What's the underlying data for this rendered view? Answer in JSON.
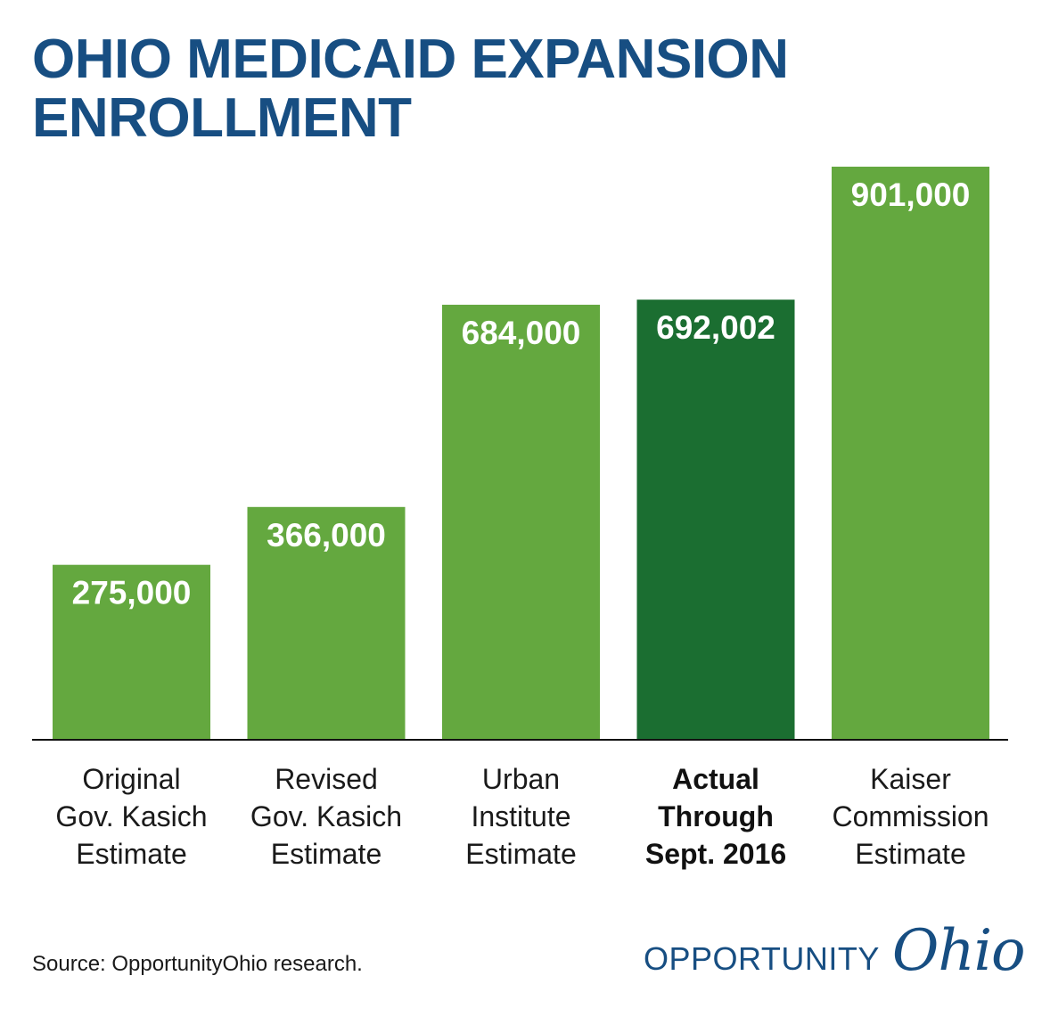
{
  "title_lines": [
    "OHIO MEDICAID EXPANSION",
    "ENROLLMENT"
  ],
  "source": "Source: OpportunityOhio research.",
  "logo": {
    "word1": "OPPORTUNITY",
    "word2": "Ohio",
    "color": "#174e82"
  },
  "colors": {
    "bar": "#64a83f",
    "highlight_bar": "#1b6e31",
    "title": "#174e82",
    "baseline": "#111111"
  },
  "chart_data": {
    "type": "bar",
    "title": "OHIO MEDICAID EXPANSION ENROLLMENT",
    "categories": [
      "Original Gov. Kasich Estimate",
      "Revised Gov. Kasich Estimate",
      "Urban Institute Estimate",
      "Actual Through Sept. 2016",
      "Kaiser Commission Estimate"
    ],
    "category_lines": [
      [
        "Original",
        "Gov. Kasich",
        "Estimate"
      ],
      [
        "Revised",
        "Gov. Kasich",
        "Estimate"
      ],
      [
        "Urban",
        "Institute",
        "Estimate"
      ],
      [
        "Actual",
        "Through",
        "Sept. 2016"
      ],
      [
        "Kaiser",
        "Commission",
        "Estimate"
      ]
    ],
    "values": [
      275000,
      366000,
      684000,
      692002,
      901000
    ],
    "value_labels": [
      "275,000",
      "366,000",
      "684,000",
      "692,002",
      "901,000"
    ],
    "highlight_index": 3,
    "xlabel": "",
    "ylabel": "",
    "ylim": [
      0,
      901000
    ],
    "grid": false,
    "legend": "none"
  }
}
